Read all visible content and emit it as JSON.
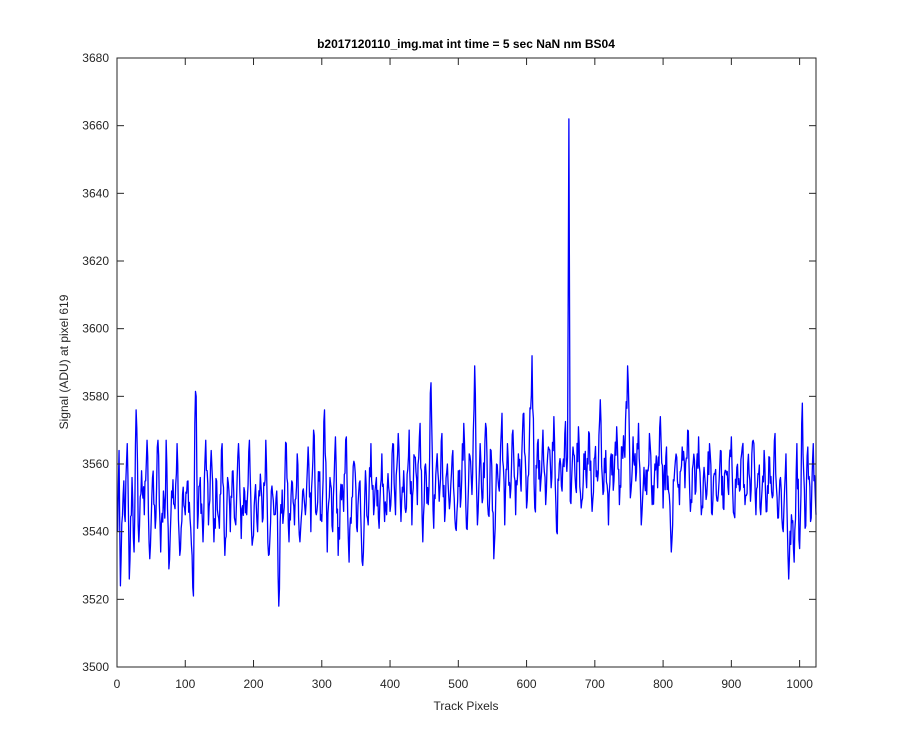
{
  "chart_data": {
    "type": "line",
    "title": "b2017120110_img.mat int time = 5 sec  NaN nm BS04",
    "xlabel": "Track Pixels",
    "ylabel": "Signal (ADU) at pixel 619",
    "xlim": [
      0,
      1024
    ],
    "ylim": [
      3500,
      3680
    ],
    "xticks": [
      0,
      100,
      200,
      300,
      400,
      500,
      600,
      700,
      800,
      900,
      1000
    ],
    "yticks": [
      3500,
      3520,
      3540,
      3560,
      3580,
      3600,
      3620,
      3640,
      3660,
      3680
    ],
    "grid": false,
    "legend": "none",
    "series": [
      {
        "color": "#0000ff",
        "x_start": 1,
        "x_step": 1,
        "keypoints": [
          [
            1,
            3540
          ],
          [
            3,
            3564
          ],
          [
            5,
            3524
          ],
          [
            10,
            3555
          ],
          [
            12,
            3543
          ],
          [
            15,
            3566
          ],
          [
            18,
            3526
          ],
          [
            22,
            3556
          ],
          [
            25,
            3534
          ],
          [
            28,
            3576
          ],
          [
            32,
            3537
          ],
          [
            36,
            3558
          ],
          [
            40,
            3545
          ],
          [
            44,
            3567
          ],
          [
            48,
            3532
          ],
          [
            52,
            3556
          ],
          [
            56,
            3541
          ],
          [
            60,
            3567
          ],
          [
            64,
            3534
          ],
          [
            68,
            3552
          ],
          [
            70,
            3544
          ],
          [
            72,
            3567
          ],
          [
            76,
            3529
          ],
          [
            80,
            3552
          ],
          [
            84,
            3548
          ],
          [
            88,
            3566
          ],
          [
            92,
            3533
          ],
          [
            96,
            3551
          ],
          [
            100,
            3545
          ],
          [
            104,
            3555
          ],
          [
            108,
            3541
          ],
          [
            112,
            3521
          ],
          [
            114,
            3572
          ],
          [
            116,
            3580
          ],
          [
            118,
            3541
          ],
          [
            122,
            3556
          ],
          [
            126,
            3537
          ],
          [
            130,
            3567
          ],
          [
            134,
            3542
          ],
          [
            138,
            3564
          ],
          [
            142,
            3537
          ],
          [
            146,
            3555
          ],
          [
            150,
            3541
          ],
          [
            154,
            3566
          ],
          [
            158,
            3533
          ],
          [
            162,
            3556
          ],
          [
            166,
            3540
          ],
          [
            170,
            3558
          ],
          [
            174,
            3542
          ],
          [
            178,
            3566
          ],
          [
            182,
            3538
          ],
          [
            186,
            3553
          ],
          [
            190,
            3545
          ],
          [
            194,
            3567
          ],
          [
            198,
            3536
          ],
          [
            202,
            3551
          ],
          [
            206,
            3540
          ],
          [
            210,
            3557
          ],
          [
            214,
            3544
          ],
          [
            218,
            3567
          ],
          [
            222,
            3533
          ],
          [
            226,
            3552
          ],
          [
            230,
            3545
          ],
          [
            234,
            3552
          ],
          [
            237,
            3518
          ],
          [
            240,
            3548
          ],
          [
            244,
            3545
          ],
          [
            248,
            3566
          ],
          [
            252,
            3537
          ],
          [
            256,
            3555
          ],
          [
            260,
            3542
          ],
          [
            264,
            3563
          ],
          [
            268,
            3537
          ],
          [
            272,
            3552
          ],
          [
            276,
            3545
          ],
          [
            280,
            3565
          ],
          [
            284,
            3540
          ],
          [
            288,
            3570
          ],
          [
            292,
            3545
          ],
          [
            296,
            3555
          ],
          [
            300,
            3543
          ],
          [
            304,
            3576
          ],
          [
            308,
            3534
          ],
          [
            312,
            3556
          ],
          [
            316,
            3540
          ],
          [
            320,
            3568
          ],
          [
            324,
            3533
          ],
          [
            328,
            3554
          ],
          [
            332,
            3546
          ],
          [
            336,
            3568
          ],
          [
            340,
            3531
          ],
          [
            344,
            3550
          ],
          [
            348,
            3560
          ],
          [
            352,
            3540
          ],
          [
            356,
            3555
          ],
          [
            360,
            3530
          ],
          [
            364,
            3558
          ],
          [
            368,
            3542
          ],
          [
            372,
            3566
          ],
          [
            376,
            3545
          ],
          [
            380,
            3556
          ],
          [
            384,
            3541
          ],
          [
            388,
            3563
          ],
          [
            392,
            3543
          ],
          [
            396,
            3553
          ],
          [
            400,
            3546
          ],
          [
            404,
            3566
          ],
          [
            408,
            3545
          ],
          [
            412,
            3569
          ],
          [
            416,
            3543
          ],
          [
            420,
            3558
          ],
          [
            424,
            3547
          ],
          [
            428,
            3570
          ],
          [
            432,
            3542
          ],
          [
            436,
            3562
          ],
          [
            440,
            3548
          ],
          [
            444,
            3572
          ],
          [
            448,
            3537
          ],
          [
            452,
            3560
          ],
          [
            456,
            3548
          ],
          [
            460,
            3584
          ],
          [
            464,
            3541
          ],
          [
            468,
            3560
          ],
          [
            472,
            3549
          ],
          [
            476,
            3569
          ],
          [
            480,
            3543
          ],
          [
            484,
            3560
          ],
          [
            488,
            3549
          ],
          [
            492,
            3564
          ],
          [
            496,
            3541
          ],
          [
            500,
            3558
          ],
          [
            504,
            3550
          ],
          [
            508,
            3572
          ],
          [
            512,
            3541
          ],
          [
            516,
            3563
          ],
          [
            520,
            3551
          ],
          [
            524,
            3589
          ],
          [
            528,
            3542
          ],
          [
            532,
            3566
          ],
          [
            536,
            3550
          ],
          [
            540,
            3572
          ],
          [
            544,
            3545
          ],
          [
            548,
            3564
          ],
          [
            552,
            3532
          ],
          [
            556,
            3560
          ],
          [
            560,
            3552
          ],
          [
            564,
            3575
          ],
          [
            568,
            3542
          ],
          [
            572,
            3566
          ],
          [
            576,
            3550
          ],
          [
            580,
            3570
          ],
          [
            584,
            3545
          ],
          [
            588,
            3563
          ],
          [
            592,
            3552
          ],
          [
            596,
            3575
          ],
          [
            600,
            3547
          ],
          [
            604,
            3566
          ],
          [
            608,
            3592
          ],
          [
            612,
            3547
          ],
          [
            616,
            3566
          ],
          [
            620,
            3552
          ],
          [
            624,
            3570
          ],
          [
            628,
            3548
          ],
          [
            632,
            3565
          ],
          [
            636,
            3553
          ],
          [
            640,
            3574
          ],
          [
            644,
            3540
          ],
          [
            648,
            3560
          ],
          [
            652,
            3552
          ],
          [
            656,
            3569
          ],
          [
            660,
            3562
          ],
          [
            662,
            3662
          ],
          [
            664,
            3549
          ],
          [
            668,
            3565
          ],
          [
            672,
            3553
          ],
          [
            676,
            3571
          ],
          [
            680,
            3547
          ],
          [
            684,
            3563
          ],
          [
            688,
            3553
          ],
          [
            692,
            3569
          ],
          [
            696,
            3546
          ],
          [
            700,
            3562
          ],
          [
            704,
            3555
          ],
          [
            708,
            3579
          ],
          [
            712,
            3551
          ],
          [
            716,
            3564
          ],
          [
            720,
            3542
          ],
          [
            724,
            3563
          ],
          [
            728,
            3555
          ],
          [
            732,
            3571
          ],
          [
            736,
            3548
          ],
          [
            740,
            3565
          ],
          [
            744,
            3562
          ],
          [
            748,
            3589
          ],
          [
            752,
            3550
          ],
          [
            756,
            3568
          ],
          [
            760,
            3555
          ],
          [
            764,
            3572
          ],
          [
            768,
            3542
          ],
          [
            772,
            3559
          ],
          [
            776,
            3551
          ],
          [
            780,
            3569
          ],
          [
            784,
            3548
          ],
          [
            788,
            3560
          ],
          [
            792,
            3553
          ],
          [
            796,
            3574
          ],
          [
            800,
            3547
          ],
          [
            804,
            3562
          ],
          [
            808,
            3552
          ],
          [
            812,
            3534
          ],
          [
            816,
            3555
          ],
          [
            820,
            3562
          ],
          [
            824,
            3548
          ],
          [
            828,
            3565
          ],
          [
            832,
            3553
          ],
          [
            836,
            3570
          ],
          [
            840,
            3546
          ],
          [
            844,
            3560
          ],
          [
            848,
            3552
          ],
          [
            852,
            3568
          ],
          [
            856,
            3545
          ],
          [
            860,
            3559
          ],
          [
            864,
            3551
          ],
          [
            868,
            3566
          ],
          [
            872,
            3545
          ],
          [
            876,
            3557
          ],
          [
            880,
            3549
          ],
          [
            884,
            3564
          ],
          [
            888,
            3547
          ],
          [
            892,
            3558
          ],
          [
            896,
            3551
          ],
          [
            900,
            3568
          ],
          [
            904,
            3545
          ],
          [
            908,
            3559
          ],
          [
            912,
            3552
          ],
          [
            916,
            3565
          ],
          [
            920,
            3548
          ],
          [
            924,
            3560
          ],
          [
            928,
            3549
          ],
          [
            932,
            3567
          ],
          [
            936,
            3545
          ],
          [
            940,
            3557
          ],
          [
            944,
            3549
          ],
          [
            948,
            3564
          ],
          [
            952,
            3546
          ],
          [
            956,
            3562
          ],
          [
            960,
            3550
          ],
          [
            964,
            3569
          ],
          [
            968,
            3544
          ],
          [
            972,
            3556
          ],
          [
            976,
            3540
          ],
          [
            980,
            3563
          ],
          [
            984,
            3526
          ],
          [
            988,
            3545
          ],
          [
            992,
            3531
          ],
          [
            996,
            3566
          ],
          [
            1000,
            3535
          ],
          [
            1004,
            3578
          ],
          [
            1008,
            3541
          ],
          [
            1012,
            3565
          ],
          [
            1016,
            3543
          ],
          [
            1020,
            3566
          ],
          [
            1024,
            3545
          ]
        ]
      }
    ]
  }
}
